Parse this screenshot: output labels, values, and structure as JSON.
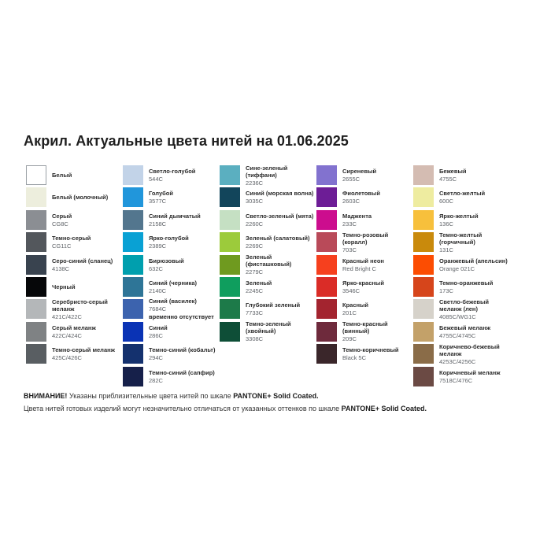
{
  "title": "Акрил. Актуальные цвета нитей на 01.06.2025",
  "columns": [
    {
      "items": [
        {
          "name": "Белый",
          "code": "",
          "hex": "#ffffff",
          "border": true
        },
        {
          "name": "Белый (молочный)",
          "code": "",
          "hex": "#edeedd"
        },
        {
          "name": "Серый",
          "code": "CG8C",
          "hex": "#8b8e93"
        },
        {
          "name": "Темно-серый",
          "code": "CG11C",
          "hex": "#53575c"
        },
        {
          "name": "Серо-синий (сланец)",
          "code": "4138C",
          "hex": "#39434f"
        },
        {
          "name": "Черный",
          "code": "",
          "hex": "#060709"
        },
        {
          "name": "Серебристо-серый меланж",
          "code": "421C/422C",
          "hex": "#b4b7b9"
        },
        {
          "name": "Серый меланж",
          "code": "422C/424C",
          "hex": "#7f8284"
        },
        {
          "name": "Темно-серый меланж",
          "code": "425C/426C",
          "hex": "#595e62"
        }
      ]
    },
    {
      "items": [
        {
          "name": "Светло-голубой",
          "code": "544C",
          "hex": "#c2d3e8"
        },
        {
          "name": "Голубой",
          "code": "3577C",
          "hex": "#2196db"
        },
        {
          "name": "Синий дымчатый",
          "code": "2158C",
          "hex": "#53768e"
        },
        {
          "name": "Ярко-голубой",
          "code": "2389C",
          "hex": "#09a1d4"
        },
        {
          "name": "Бирюзовый",
          "code": "632C",
          "hex": "#009fae"
        },
        {
          "name": "Синий (черника)",
          "code": "2140C",
          "hex": "#2e7597"
        },
        {
          "name": "Синий (василек)",
          "code": "7684C",
          "note": "временно отсутствует",
          "hex": "#3c63ae"
        },
        {
          "name": "Синий",
          "code": "286C",
          "hex": "#0a33b5"
        },
        {
          "name": "Темно-синий (кобальт)",
          "code": "294C",
          "hex": "#14316e"
        },
        {
          "name": "Темно-синий (сапфир)",
          "code": "282C",
          "hex": "#16204a"
        }
      ]
    },
    {
      "items": [
        {
          "name": "Сине-зеленый (тиффани)",
          "code": "2236C",
          "hex": "#5bafc0"
        },
        {
          "name": "Синий (морская волна)",
          "code": "3035C",
          "hex": "#12455b"
        },
        {
          "name": "Светло-зеленый (мята)",
          "code": "2260C",
          "hex": "#c5e0c3"
        },
        {
          "name": "Зеленый (салатовый)",
          "code": "2269C",
          "hex": "#9ccb3b"
        },
        {
          "name": "Зеленый (фисташковый)",
          "code": "2279C",
          "hex": "#6f9a1f"
        },
        {
          "name": "Зеленый",
          "code": "2245C",
          "hex": "#0f9e5e"
        },
        {
          "name": "Глубокий зеленый",
          "code": "7733C",
          "hex": "#1d7a49"
        },
        {
          "name": "Темно-зеленый (хвойный)",
          "code": "3308C",
          "hex": "#0e4e37"
        }
      ]
    },
    {
      "items": [
        {
          "name": "Сиреневый",
          "code": "2655C",
          "hex": "#8272cf"
        },
        {
          "name": "Фиолетовый",
          "code": "2603C",
          "hex": "#6d1d96"
        },
        {
          "name": "Маджента",
          "code": "233C",
          "hex": "#cc0d8e"
        },
        {
          "name": "Темно-розовый (коралл)",
          "code": "703C",
          "hex": "#b94a59"
        },
        {
          "name": "Красный неон",
          "code": "Red Bright C",
          "hex": "#f6401e"
        },
        {
          "name": "Ярко-красный",
          "code": "3546C",
          "hex": "#da2c27"
        },
        {
          "name": "Красный",
          "code": "201C",
          "hex": "#a3242f"
        },
        {
          "name": "Темно-красный (винный)",
          "code": "209C",
          "hex": "#6e2a3c"
        },
        {
          "name": "Темно-коричневый",
          "code": "Black 5C",
          "hex": "#3a262a"
        }
      ]
    },
    {
      "items": [
        {
          "name": "Бежевый",
          "code": "4755C",
          "hex": "#d4bcb2"
        },
        {
          "name": "Светло-желтый",
          "code": "600C",
          "hex": "#eeeca0"
        },
        {
          "name": "Ярко-желтый",
          "code": "136C",
          "hex": "#f7c03c"
        },
        {
          "name": "Темно-желтый (горчичный)",
          "code": "131C",
          "hex": "#c98a0c"
        },
        {
          "name": "Оранжевый (апельсин)",
          "code": "Orange 021C",
          "hex": "#fc4d02"
        },
        {
          "name": "Темно-оранжевый",
          "code": "173C",
          "hex": "#d6451b"
        },
        {
          "name": "Светло-бежевый меланж (лен)",
          "code": "4085C/WG1C",
          "hex": "#d6d2ca"
        },
        {
          "name": "Бежевый меланж",
          "code": "4755C/4745C",
          "hex": "#c3a169"
        },
        {
          "name": "Коричнево-бежевый меланж",
          "code": "4253C/4256C",
          "hex": "#8a6c48"
        },
        {
          "name": "Коричневый меланж",
          "code": "7518C/476C",
          "hex": "#6b4a44"
        }
      ]
    }
  ],
  "footer": {
    "line1_bold": "ВНИМАНИЕ!",
    "line1_text": " Указаны приблизительные цвета нитей по шкале ",
    "line1_pantone": "PANTONE+ Solid Coated.",
    "line2_text": "Цвета нитей готовых изделий могут незначительно отличаться от указанных оттенков по шкале ",
    "line2_pantone": "PANTONE+ Solid Coated."
  }
}
